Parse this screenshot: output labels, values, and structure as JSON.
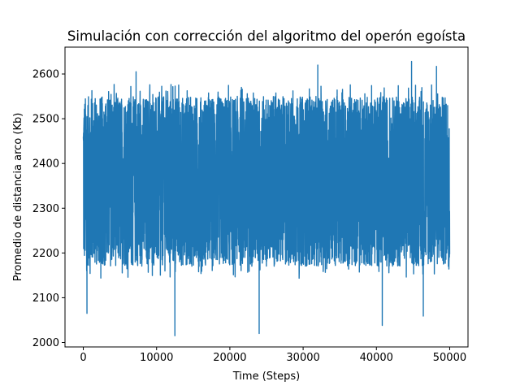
{
  "chart_data": {
    "type": "line",
    "title": "Simulación con corrección del algoritmo del operón egoísta",
    "xlabel": "Time (Steps)",
    "ylabel": "Promedio de distancia arco (Kb)",
    "xlim": [
      -2500,
      52500
    ],
    "ylim": [
      1990,
      2660
    ],
    "x_ticks": [
      0,
      10000,
      20000,
      30000,
      40000,
      50000
    ],
    "y_ticks": [
      2000,
      2100,
      2200,
      2300,
      2400,
      2500,
      2600
    ],
    "grid": false,
    "legend": "none",
    "series": [
      {
        "color": "#1f77b4",
        "x_range": [
          0,
          50000
        ],
        "typical_band": [
          2170,
          2550
        ],
        "peaks": [
          {
            "x": 44800,
            "y": 2628
          },
          {
            "x": 32000,
            "y": 2620
          },
          {
            "x": 7200,
            "y": 2605
          },
          {
            "x": 48200,
            "y": 2617
          },
          {
            "x": 12500,
            "y": 2015
          },
          {
            "x": 24000,
            "y": 2020
          },
          {
            "x": 40800,
            "y": 2038
          },
          {
            "x": 500,
            "y": 2065
          },
          {
            "x": 46400,
            "y": 2059
          }
        ]
      }
    ]
  }
}
